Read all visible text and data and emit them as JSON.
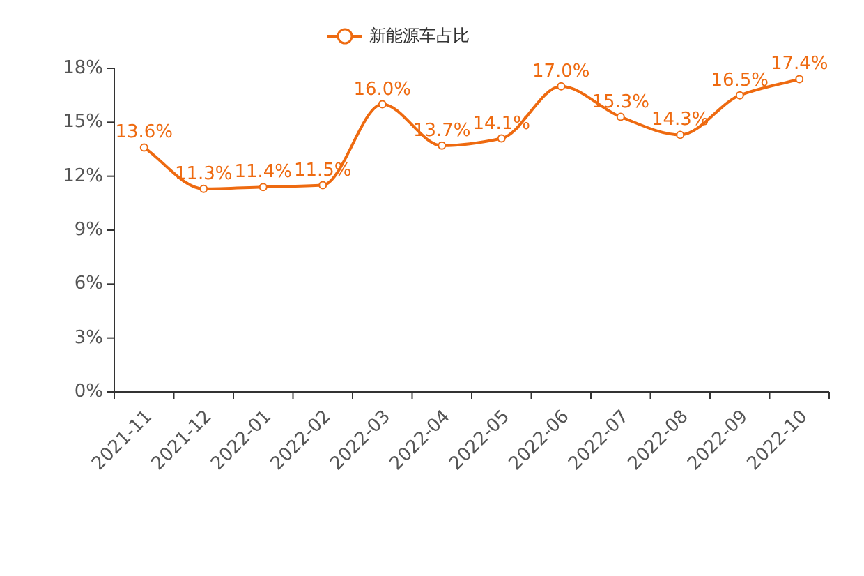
{
  "chart_data": {
    "type": "line",
    "categories": [
      "2021-11",
      "2021-12",
      "2022-01",
      "2022-02",
      "2022-03",
      "2022-04",
      "2022-05",
      "2022-06",
      "2022-07",
      "2022-08",
      "2022-09",
      "2022-10"
    ],
    "series": [
      {
        "name": "新能源车占比",
        "color": "#ee6a10",
        "values": [
          13.6,
          11.3,
          11.4,
          11.5,
          16.0,
          13.7,
          14.1,
          17.0,
          15.3,
          14.3,
          16.5,
          17.4
        ],
        "value_labels": [
          "13.6%",
          "11.3%",
          "11.4%",
          "11.5%",
          "16.0%",
          "13.7%",
          "14.1%",
          "17.0%",
          "15.3%",
          "14.3%",
          "16.5%",
          "17.4%"
        ]
      }
    ],
    "ylim": [
      0,
      18
    ],
    "yticks": [
      {
        "value": 0,
        "label": "0%"
      },
      {
        "value": 3,
        "label": "3%"
      },
      {
        "value": 6,
        "label": "6%"
      },
      {
        "value": 9,
        "label": "9%"
      },
      {
        "value": 12,
        "label": "12%"
      },
      {
        "value": 15,
        "label": "15%"
      },
      {
        "value": 18,
        "label": "18%"
      }
    ],
    "grid": false,
    "legend": "top",
    "marker": "circle",
    "line_style": "solid"
  }
}
